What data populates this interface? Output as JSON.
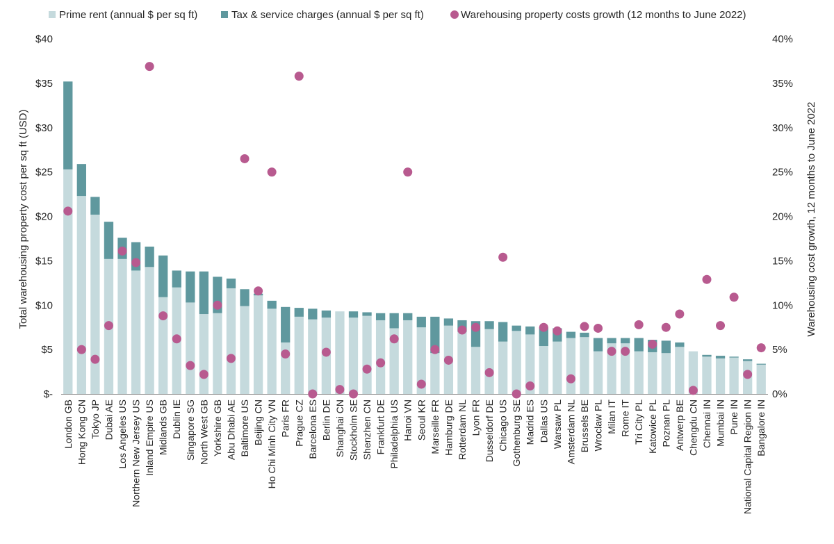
{
  "chart_data": {
    "type": "bar",
    "stacked": true,
    "legend": [
      {
        "name": "Prime rent (annual $ per sq ft)",
        "color": "#c5dadd"
      },
      {
        "name": "Tax & service charges (annual $ per sq ft)",
        "color": "#5f989e"
      },
      {
        "name": "Warehousing property costs growth (12 months to June 2022)",
        "color": "#b85a8f"
      }
    ],
    "ylabel": "Total warehousing property cost per sq ft (USD)",
    "ylabel_right": "Warehousing cost growth, 12 months to June 2022",
    "ylim": [
      0,
      40
    ],
    "ylim_right": [
      0,
      40
    ],
    "y_ticks": [
      "$-",
      "$5",
      "$10",
      "$15",
      "$20",
      "$25",
      "$30",
      "$35",
      "$40"
    ],
    "y_ticks_right": [
      "0%",
      "5%",
      "10%",
      "15%",
      "20%",
      "25%",
      "30%",
      "35%",
      "40%"
    ],
    "categories": [
      "London GB",
      "Hong Kong CN",
      "Tokyo JP",
      "Dubai AE",
      "Los Angeles US",
      "Northern New Jersey US",
      "Inland Empire US",
      "Midlands GB",
      "Dublin IE",
      "Singapore SG",
      "North West GB",
      "Yorkshire GB",
      "Abu Dhabi AE",
      "Baltimore US",
      "Beijing CN",
      "Ho Chi Minh City VN",
      "Paris FR",
      "Prague CZ",
      "Barcelona ES",
      "Berlin DE",
      "Shanghai CN",
      "Stockholm SE",
      "Shenzhen CN",
      "Frankfurt DE",
      "Philadelphia US",
      "Hanoi VN",
      "Seoul KR",
      "Marseille FR",
      "Hamburg DE",
      "Rotterdam NL",
      "Lyon FR",
      "Dusseldorf DE",
      "Chicago US",
      "Gothenburg SE",
      "Madrid ES",
      "Dallas US",
      "Warsaw PL",
      "Amsterdam NL",
      "Brussels BE",
      "Wroclaw PL",
      "Milan IT",
      "Rome IT",
      "Tri City PL",
      "Katowice PL",
      "Poznan PL",
      "Antwerp BE",
      "Chengdu CN",
      "Chennai IN",
      "Mumbai IN",
      "Pune IN",
      "National Capital Region IN",
      "Bangalore IN"
    ],
    "series": [
      {
        "name": "Prime rent (annual $ per sq ft)",
        "type": "bar",
        "values": [
          25.3,
          22.3,
          20.2,
          15.2,
          15.2,
          13.9,
          14.3,
          10.9,
          12.0,
          10.3,
          9.0,
          9.1,
          11.9,
          9.9,
          11.1,
          9.6,
          5.8,
          8.7,
          8.4,
          8.6,
          9.3,
          8.6,
          8.8,
          8.3,
          7.4,
          8.3,
          7.5,
          4.6,
          7.7,
          7.0,
          5.3,
          7.3,
          5.9,
          7.1,
          6.7,
          5.4,
          5.9,
          6.3,
          6.4,
          4.8,
          5.7,
          5.7,
          4.8,
          4.7,
          4.6,
          5.3,
          4.8,
          4.2,
          4.0,
          4.1,
          3.7,
          3.3
        ]
      },
      {
        "name": "Tax & service charges (annual $ per sq ft)",
        "type": "bar",
        "values": [
          9.9,
          3.6,
          2.0,
          4.2,
          2.4,
          3.2,
          2.3,
          4.7,
          1.9,
          3.5,
          4.8,
          4.1,
          1.1,
          1.9,
          0.2,
          0.9,
          4.0,
          1.0,
          1.2,
          0.8,
          0.0,
          0.7,
          0.4,
          0.8,
          1.7,
          0.8,
          1.2,
          4.1,
          0.8,
          1.3,
          2.9,
          0.9,
          2.2,
          0.6,
          0.9,
          2.1,
          1.5,
          0.7,
          0.5,
          1.5,
          0.6,
          0.6,
          1.5,
          1.4,
          1.4,
          0.5,
          0.0,
          0.2,
          0.3,
          0.1,
          0.2,
          0.1
        ]
      },
      {
        "name": "Warehousing property costs growth (12 months to June 2022)",
        "type": "scatter",
        "axis": "right",
        "unit": "%",
        "values": [
          20.6,
          5.0,
          3.9,
          7.7,
          16.1,
          14.8,
          36.9,
          8.8,
          6.2,
          3.2,
          2.2,
          10.0,
          4.0,
          26.5,
          11.6,
          25.0,
          4.5,
          35.8,
          0.0,
          4.7,
          0.5,
          0.0,
          2.8,
          3.5,
          6.2,
          25.0,
          1.1,
          5.0,
          3.8,
          7.2,
          7.5,
          2.4,
          15.4,
          0.0,
          0.9,
          7.5,
          7.1,
          1.7,
          7.6,
          7.4,
          4.8,
          4.8,
          7.8,
          5.6,
          7.5,
          9.0,
          0.4,
          12.9,
          7.7,
          10.9,
          2.2,
          5.2
        ]
      }
    ]
  }
}
